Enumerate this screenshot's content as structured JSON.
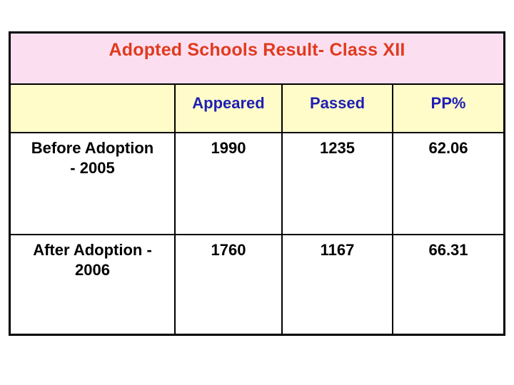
{
  "slide": {
    "title": "Adopted Schools Result- Class XII"
  },
  "table": {
    "columns": [
      "",
      "Appeared",
      "Passed",
      "PP%"
    ],
    "rows": [
      {
        "label": "Before Adoption\n- 2005",
        "appeared": "1990",
        "passed": "1235",
        "pp": "62.06"
      },
      {
        "label": "After Adoption -\n2006",
        "appeared": "1760",
        "passed": "1167",
        "pp": "66.31"
      }
    ]
  },
  "chart_data": {
    "type": "table",
    "title": "Adopted Schools Result- Class XII",
    "columns": [
      "",
      "Appeared",
      "Passed",
      "PP%"
    ],
    "rows": [
      [
        "Before Adoption - 2005",
        1990,
        1235,
        62.06
      ],
      [
        "After Adoption - 2006",
        1760,
        1167,
        66.31
      ]
    ]
  },
  "colors": {
    "title_text": "#e03a1e",
    "title_band_bg": "#fbdff0",
    "header_bg": "#fffcc9",
    "header_text": "#1f1fb4",
    "body_text": "#000000",
    "border": "#000000"
  }
}
